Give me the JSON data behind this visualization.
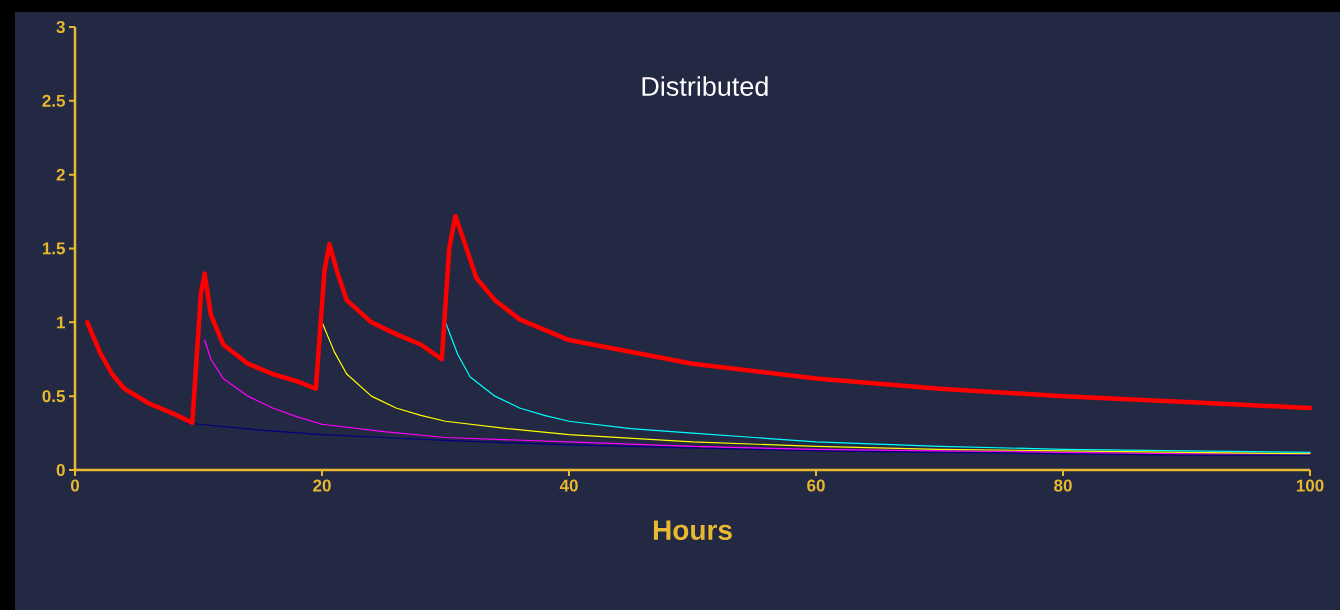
{
  "chart_data": {
    "type": "line",
    "title": "Distributed",
    "xlabel": "Hours",
    "xlim": [
      0,
      100
    ],
    "ylim": [
      0,
      3
    ],
    "xticks": [
      0,
      20,
      40,
      60,
      80,
      100
    ],
    "yticks": [
      0,
      0.5,
      1,
      1.5,
      2,
      2.5,
      3
    ],
    "marker": "none",
    "line_style": "solid",
    "series": [
      {
        "color": "#000080",
        "x": [
          9,
          10,
          15,
          20,
          25,
          30,
          40,
          50,
          60,
          70,
          80,
          90,
          100
        ],
        "values": [
          0.32,
          0.31,
          0.27,
          0.24,
          0.22,
          0.2,
          0.17,
          0.15,
          0.13,
          0.12,
          0.11,
          0.1,
          0.1
        ]
      },
      {
        "color": "#ff00ff",
        "x": [
          10.5,
          11,
          12,
          14,
          16,
          18,
          20,
          25,
          30,
          40,
          50,
          60,
          70,
          80,
          90,
          100
        ],
        "values": [
          0.88,
          0.75,
          0.62,
          0.5,
          0.42,
          0.36,
          0.31,
          0.26,
          0.22,
          0.19,
          0.16,
          0.14,
          0.13,
          0.12,
          0.11,
          0.11
        ]
      },
      {
        "color": "#ffff00",
        "x": [
          20,
          21,
          22,
          24,
          26,
          28,
          30,
          35,
          40,
          50,
          60,
          70,
          80,
          90,
          100
        ],
        "values": [
          1.0,
          0.8,
          0.65,
          0.5,
          0.42,
          0.37,
          0.33,
          0.28,
          0.24,
          0.19,
          0.16,
          0.14,
          0.13,
          0.12,
          0.11
        ]
      },
      {
        "color": "#00ffff",
        "x": [
          30,
          31,
          32,
          34,
          36,
          38,
          40,
          45,
          50,
          55,
          60,
          70,
          80,
          90,
          100
        ],
        "values": [
          1.0,
          0.78,
          0.63,
          0.5,
          0.42,
          0.37,
          0.33,
          0.28,
          0.25,
          0.22,
          0.19,
          0.16,
          0.14,
          0.13,
          0.12
        ]
      },
      {
        "color": "#ff0000",
        "x": [
          1,
          2,
          3,
          4,
          6,
          8,
          9.5,
          10.2,
          10.5,
          11,
          12,
          14,
          16,
          18,
          19.5,
          20.2,
          20.6,
          21.2,
          22,
          24,
          26,
          28,
          29.7,
          30.3,
          30.8,
          31.5,
          32.5,
          34,
          36,
          40,
          45,
          50,
          55,
          60,
          70,
          80,
          90,
          100
        ],
        "values": [
          1.0,
          0.8,
          0.65,
          0.55,
          0.45,
          0.38,
          0.32,
          1.2,
          1.33,
          1.05,
          0.85,
          0.72,
          0.65,
          0.6,
          0.55,
          1.35,
          1.53,
          1.35,
          1.15,
          1.0,
          0.92,
          0.85,
          0.75,
          1.5,
          1.72,
          1.55,
          1.3,
          1.15,
          1.02,
          0.88,
          0.8,
          0.72,
          0.67,
          0.62,
          0.55,
          0.5,
          0.46,
          0.42
        ]
      }
    ]
  }
}
